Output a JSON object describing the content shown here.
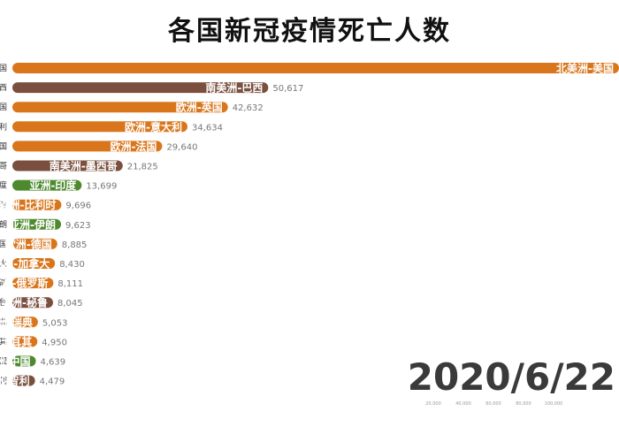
{
  "title": "各国新冠疫情死亡人数",
  "date": "2020/6/22",
  "colors": {
    "北美洲": "#d9761c",
    "南美洲": "#7a4f3e",
    "欧洲": "#d9761c",
    "亚洲": "#4d8a2e"
  },
  "chart_data": {
    "type": "bar",
    "orientation": "horizontal",
    "title": "各国新冠疫情死亡人数",
    "xlim": [
      0,
      120000
    ],
    "x_ticks": [
      "20,000",
      "40,000",
      "60,000",
      "80,000",
      "100,000"
    ],
    "x_tick_values": [
      20000,
      40000,
      60000,
      80000,
      100000
    ],
    "rows": [
      {
        "label": "北美洲-美国",
        "edge": "国",
        "continent": "北美洲",
        "value": 120000,
        "value_label": ""
      },
      {
        "label": "南美洲-巴西",
        "edge": "西",
        "continent": "南美洲",
        "value": 50617,
        "value_label": "50,617"
      },
      {
        "label": "欧洲-英国",
        "edge": "国",
        "continent": "欧洲",
        "value": 42632,
        "value_label": "42,632"
      },
      {
        "label": "欧洲-意大利",
        "edge": "利",
        "continent": "欧洲",
        "value": 34634,
        "value_label": "34,634"
      },
      {
        "label": "欧洲-法国",
        "edge": "国",
        "continent": "欧洲",
        "value": 29640,
        "value_label": "29,640"
      },
      {
        "label": "南美洲-墨西哥",
        "edge": "哥",
        "continent": "南美洲",
        "value": 21825,
        "value_label": "21,825"
      },
      {
        "label": "亚洲-印度",
        "edge": "度",
        "continent": "亚洲",
        "value": 13699,
        "value_label": "13,699"
      },
      {
        "label": "欧洲-比利时",
        "edge": "时",
        "continent": "欧洲",
        "value": 9696,
        "value_label": "9,696"
      },
      {
        "label": "亚洲-伊朗",
        "edge": "朗",
        "continent": "亚洲",
        "value": 9623,
        "value_label": "9,623"
      },
      {
        "label": "欧洲-德国",
        "edge": "国",
        "continent": "欧洲",
        "value": 8885,
        "value_label": "8,885"
      },
      {
        "label": "北美洲-加拿大",
        "edge": "大",
        "continent": "北美洲",
        "value": 8430,
        "value_label": "8,430"
      },
      {
        "label": "欧洲-俄罗斯",
        "edge": "斯",
        "continent": "欧洲",
        "value": 8111,
        "value_label": "8,111"
      },
      {
        "label": "南美洲-秘鲁",
        "edge": "鲁",
        "continent": "南美洲",
        "value": 8045,
        "value_label": "8,045"
      },
      {
        "label": "欧洲-瑞典",
        "edge": "典",
        "continent": "欧洲",
        "value": 5053,
        "value_label": "5,053"
      },
      {
        "label": "欧洲-土耳其",
        "edge": "其",
        "continent": "欧洲",
        "value": 4950,
        "value_label": "4,950"
      },
      {
        "label": "亚洲-中国",
        "edge": "国",
        "continent": "亚洲",
        "value": 4639,
        "value_label": "4,639"
      },
      {
        "label": "南美洲-智利",
        "edge": "利",
        "continent": "南美洲",
        "value": 4479,
        "value_label": "4,479"
      }
    ]
  }
}
